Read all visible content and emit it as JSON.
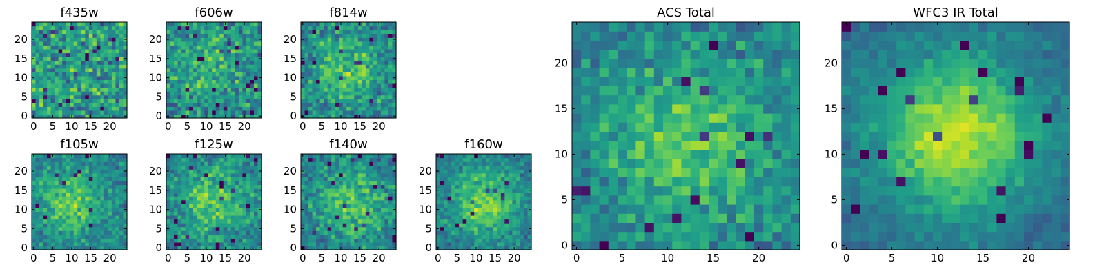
{
  "chart_data": [
    {
      "type": "heatmap",
      "title": "f435w",
      "size": 25,
      "xticks": [
        0,
        5,
        10,
        15,
        20
      ],
      "yticks": [
        0,
        5,
        10,
        15,
        20
      ],
      "xlim": [
        -0.5,
        24.5
      ],
      "ylim": [
        -0.5,
        24.5
      ],
      "colormap": "viridis",
      "peak": [
        12,
        12
      ],
      "contrast": 0.0,
      "noise": 0.35,
      "seed": 11
    },
    {
      "type": "heatmap",
      "title": "f606w",
      "size": 25,
      "xticks": [
        0,
        5,
        10,
        15,
        20
      ],
      "yticks": [
        0,
        5,
        10,
        15,
        20
      ],
      "xlim": [
        -0.5,
        24.5
      ],
      "ylim": [
        -0.5,
        24.5
      ],
      "colormap": "viridis",
      "peak": [
        11,
        13
      ],
      "contrast": 0.15,
      "noise": 0.3,
      "seed": 22
    },
    {
      "type": "heatmap",
      "title": "f814w",
      "size": 25,
      "xticks": [
        0,
        5,
        10,
        15,
        20
      ],
      "yticks": [
        0,
        5,
        10,
        15,
        20
      ],
      "xlim": [
        -0.5,
        24.5
      ],
      "ylim": [
        -0.5,
        24.5
      ],
      "colormap": "viridis",
      "peak": [
        12,
        12
      ],
      "contrast": 0.25,
      "noise": 0.28,
      "seed": 33
    },
    {
      "type": "heatmap",
      "title": "f105w",
      "size": 25,
      "xticks": [
        0,
        5,
        10,
        15,
        20
      ],
      "yticks": [
        0,
        5,
        10,
        15,
        20
      ],
      "xlim": [
        -0.5,
        24.5
      ],
      "ylim": [
        -0.5,
        24.5
      ],
      "colormap": "viridis",
      "peak": [
        10,
        12
      ],
      "contrast": 0.3,
      "noise": 0.22,
      "seed": 44
    },
    {
      "type": "heatmap",
      "title": "f125w",
      "size": 25,
      "xticks": [
        0,
        5,
        10,
        15,
        20
      ],
      "yticks": [
        0,
        5,
        10,
        15,
        20
      ],
      "xlim": [
        -0.5,
        24.5
      ],
      "ylim": [
        -0.5,
        24.5
      ],
      "colormap": "viridis",
      "peak": [
        12,
        12
      ],
      "contrast": 0.28,
      "noise": 0.25,
      "seed": 55
    },
    {
      "type": "heatmap",
      "title": "f140w",
      "size": 25,
      "xticks": [
        0,
        5,
        10,
        15,
        20
      ],
      "yticks": [
        0,
        5,
        10,
        15,
        20
      ],
      "xlim": [
        -0.5,
        24.5
      ],
      "ylim": [
        -0.5,
        24.5
      ],
      "colormap": "viridis",
      "peak": [
        13,
        11
      ],
      "contrast": 0.3,
      "noise": 0.25,
      "seed": 66
    },
    {
      "type": "heatmap",
      "title": "f160w",
      "size": 25,
      "xticks": [
        0,
        5,
        10,
        15,
        20
      ],
      "yticks": [
        0,
        5,
        10,
        15,
        20
      ],
      "xlim": [
        -0.5,
        24.5
      ],
      "ylim": [
        -0.5,
        24.5
      ],
      "colormap": "viridis",
      "peak": [
        12,
        12
      ],
      "contrast": 0.4,
      "noise": 0.2,
      "seed": 77
    },
    {
      "type": "heatmap",
      "title": "ACS Total",
      "size": 25,
      "xticks": [
        0,
        5,
        10,
        15,
        20
      ],
      "yticks": [
        0,
        5,
        10,
        15,
        20
      ],
      "xlim": [
        -0.5,
        24.5
      ],
      "ylim": [
        -0.5,
        24.5
      ],
      "colormap": "viridis",
      "peak": [
        12,
        11
      ],
      "contrast": 0.3,
      "noise": 0.22,
      "seed": 88
    },
    {
      "type": "heatmap",
      "title": "WFC3 IR Total",
      "size": 25,
      "xticks": [
        0,
        5,
        10,
        15,
        20
      ],
      "yticks": [
        0,
        5,
        10,
        15,
        20
      ],
      "xlim": [
        -0.5,
        24.5
      ],
      "ylim": [
        -0.5,
        24.5
      ],
      "colormap": "viridis",
      "peak": [
        12,
        12
      ],
      "contrast": 0.55,
      "noise": 0.12,
      "seed": 99
    }
  ]
}
